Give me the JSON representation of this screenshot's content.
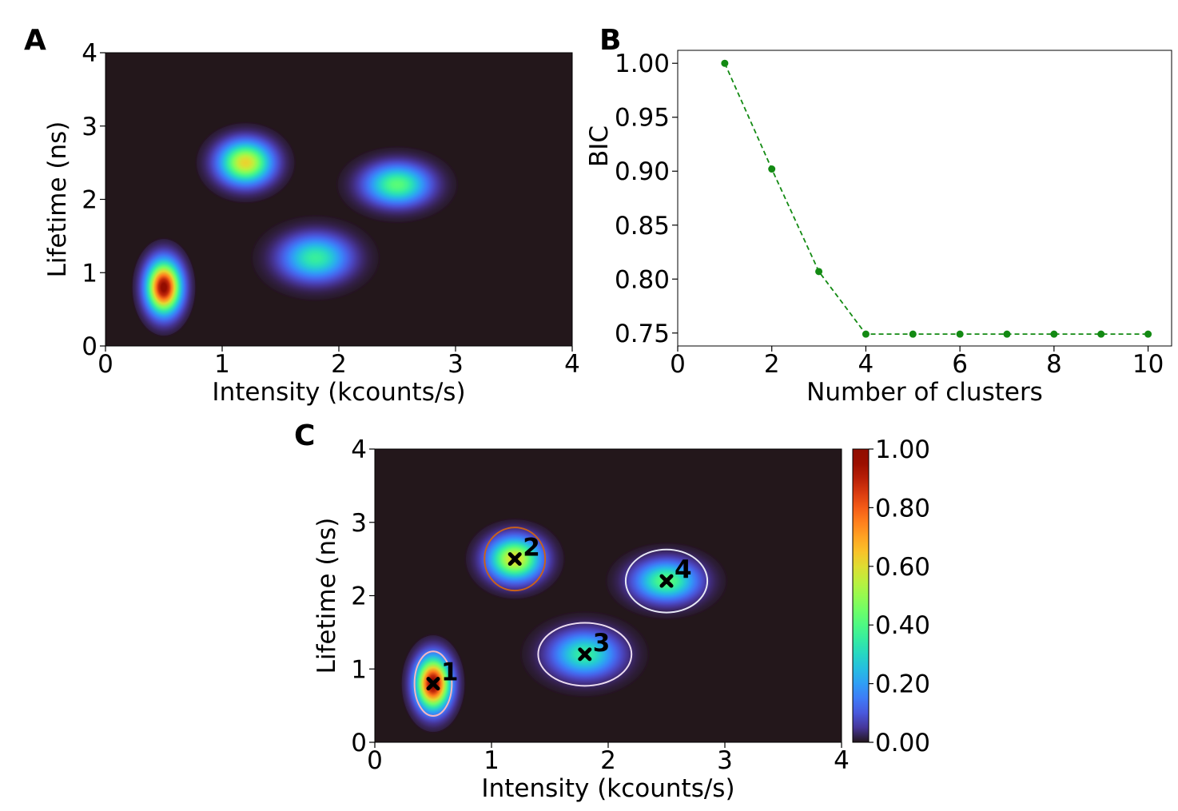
{
  "panels": {
    "a": {
      "letter": "A"
    },
    "b": {
      "letter": "B"
    },
    "c": {
      "letter": "C"
    }
  },
  "chart_data": [
    {
      "id": "A",
      "type": "heatmap",
      "title": "",
      "xlabel": "Intensity (kcounts/s)",
      "ylabel": "Lifetime (ns)",
      "xlim": [
        0,
        4
      ],
      "ylim": [
        0,
        4
      ],
      "xticks": [
        "0",
        "1",
        "2",
        "3",
        "4"
      ],
      "yticks": [
        "0",
        "1",
        "2",
        "3",
        "4"
      ],
      "colormap": "turbo",
      "clusters": [
        {
          "mu_x": 0.5,
          "mu_y": 0.8,
          "sigma_x": 0.09,
          "sigma_y": 0.22,
          "peak": 1.0
        },
        {
          "mu_x": 1.2,
          "mu_y": 2.5,
          "sigma_x": 0.14,
          "sigma_y": 0.18,
          "peak": 0.62
        },
        {
          "mu_x": 1.8,
          "mu_y": 1.2,
          "sigma_x": 0.18,
          "sigma_y": 0.19,
          "peak": 0.36
        },
        {
          "mu_x": 2.5,
          "mu_y": 2.2,
          "sigma_x": 0.17,
          "sigma_y": 0.17,
          "peak": 0.42
        }
      ]
    },
    {
      "id": "B",
      "type": "line",
      "title": "",
      "xlabel": "Number of clusters",
      "ylabel": "BIC",
      "xlim": [
        0,
        10.5
      ],
      "ylim": [
        0.738,
        1.012
      ],
      "xticks": [
        "0",
        "2",
        "4",
        "6",
        "8",
        "10"
      ],
      "yticks": [
        "0.75",
        "0.80",
        "0.85",
        "0.90",
        "0.95",
        "1.00"
      ],
      "color": "#138a13",
      "series": [
        {
          "name": "BIC",
          "x": [
            1,
            2,
            3,
            4,
            5,
            6,
            7,
            8,
            9,
            10
          ],
          "values": [
            1.0,
            0.902,
            0.807,
            0.749,
            0.749,
            0.749,
            0.749,
            0.749,
            0.749,
            0.749
          ]
        }
      ]
    },
    {
      "id": "C",
      "type": "heatmap",
      "title": "",
      "xlabel": "Intensity (kcounts/s)",
      "ylabel": "Lifetime (ns)",
      "xlim": [
        0,
        4
      ],
      "ylim": [
        0,
        4
      ],
      "xticks": [
        "0",
        "1",
        "2",
        "3",
        "4"
      ],
      "yticks": [
        "0",
        "1",
        "2",
        "3",
        "4"
      ],
      "colormap": "turbo",
      "colorbar": {
        "min": 0,
        "max": 1,
        "ticks": [
          "0.00",
          "0.20",
          "0.40",
          "0.60",
          "0.80",
          "1.00"
        ]
      },
      "clusters": [
        {
          "label": "1",
          "center_x": 0.5,
          "center_y": 0.8,
          "sigma_x": 0.09,
          "sigma_y": 0.22,
          "peak": 1.0,
          "ring_color": "#f4b6c2",
          "ring_rx": 0.16,
          "ring_ry": 0.44
        },
        {
          "label": "2",
          "center_x": 1.2,
          "center_y": 2.5,
          "sigma_x": 0.14,
          "sigma_y": 0.18,
          "peak": 0.62,
          "ring_color": "#c8621a",
          "ring_rx": 0.26,
          "ring_ry": 0.43
        },
        {
          "label": "3",
          "center_x": 1.8,
          "center_y": 1.2,
          "sigma_x": 0.18,
          "sigma_y": 0.19,
          "peak": 0.36,
          "ring_color": "#ecdcf0",
          "ring_rx": 0.4,
          "ring_ry": 0.43
        },
        {
          "label": "4",
          "center_x": 2.5,
          "center_y": 2.2,
          "sigma_x": 0.17,
          "sigma_y": 0.17,
          "peak": 0.42,
          "ring_color": "#e6e8f4",
          "ring_rx": 0.35,
          "ring_ry": 0.43
        }
      ]
    }
  ]
}
